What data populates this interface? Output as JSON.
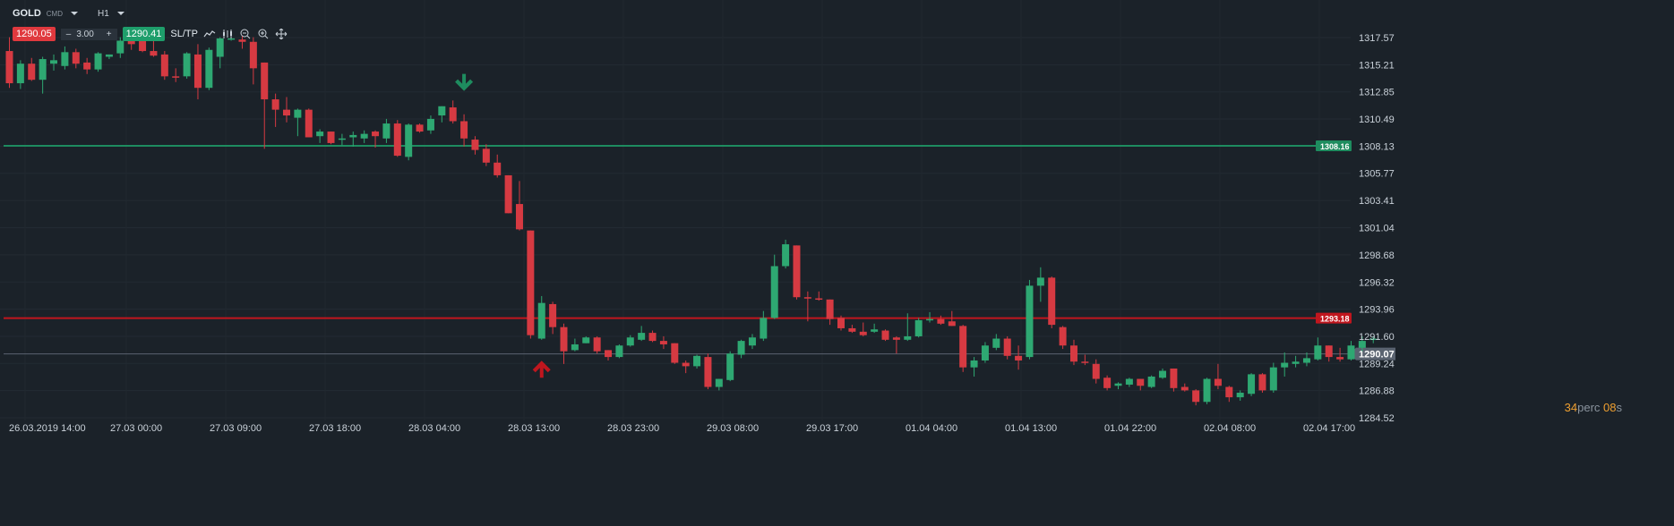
{
  "toolbar": {
    "symbol": "GOLD",
    "symbol_type": "CMD",
    "timeframe": "H1",
    "sell_price": "1290.05",
    "volume_minus": "–",
    "volume": "3.00",
    "volume_plus": "+",
    "buy_price": "1290.41",
    "sltp_label": "SL/TP"
  },
  "timer": {
    "prefix": "34",
    "mid": "perc ",
    "suffix_num": "08",
    "suffix": "s"
  },
  "colors": {
    "background": "#1b2229",
    "up": "#2ea872",
    "down": "#d63a42",
    "tp_line": "#1e8c5f",
    "sl_line": "#c0161e"
  },
  "chart_data": {
    "type": "candlestick",
    "y_ticks": [
      "1317.57",
      "1315.21",
      "1312.85",
      "1310.49",
      "1308.13",
      "1305.77",
      "1303.41",
      "1301.04",
      "1298.68",
      "1296.32",
      "1293.96",
      "1291.60",
      "1289.24",
      "1286.88",
      "1284.52"
    ],
    "ylim": [
      1284.52,
      1317.57
    ],
    "x_labels": [
      "26.03.2019 14:00",
      "27.03 00:00",
      "27.03 09:00",
      "27.03 18:00",
      "28.03 04:00",
      "28.03 13:00",
      "28.03 23:00",
      "29.03 08:00",
      "29.03 17:00",
      "01.04 04:00",
      "01.04 13:00",
      "01.04 22:00",
      "02.04 08:00",
      "02.04 17:00"
    ],
    "hlines": [
      {
        "name": "take-profit",
        "value": 1308.16,
        "label": "1308.16",
        "color": "#1e8c5f"
      },
      {
        "name": "stop-loss",
        "value": 1293.18,
        "label": "1293.18",
        "color": "#c0161e"
      },
      {
        "name": "current-price",
        "value": 1290.07,
        "label": "1290.07",
        "color": "#5a6370"
      }
    ],
    "markers": [
      {
        "type": "sell-arrow",
        "index": 41,
        "value": 1312.7
      },
      {
        "type": "buy-arrow",
        "index": 48,
        "value": 1289.4
      }
    ],
    "candles": [
      {
        "o": 1316.4,
        "h": 1317.6,
        "l": 1313.2,
        "c": 1313.6
      },
      {
        "o": 1313.6,
        "h": 1315.6,
        "l": 1313.1,
        "c": 1315.3
      },
      {
        "o": 1315.3,
        "h": 1315.8,
        "l": 1313.8,
        "c": 1313.9
      },
      {
        "o": 1313.9,
        "h": 1315.9,
        "l": 1312.7,
        "c": 1315.7
      },
      {
        "o": 1315.3,
        "h": 1316.1,
        "l": 1314.7,
        "c": 1315.6
      },
      {
        "o": 1315.1,
        "h": 1316.8,
        "l": 1314.8,
        "c": 1316.3
      },
      {
        "o": 1316.3,
        "h": 1316.6,
        "l": 1314.9,
        "c": 1315.3
      },
      {
        "o": 1315.4,
        "h": 1315.8,
        "l": 1314.4,
        "c": 1314.8
      },
      {
        "o": 1314.8,
        "h": 1316.3,
        "l": 1314.6,
        "c": 1316.2
      },
      {
        "o": 1315.9,
        "h": 1316.1,
        "l": 1315.7,
        "c": 1316.1
      },
      {
        "o": 1316.2,
        "h": 1317.6,
        "l": 1315.8,
        "c": 1317.3
      },
      {
        "o": 1317.3,
        "h": 1317.6,
        "l": 1316.5,
        "c": 1317.0
      },
      {
        "o": 1317.4,
        "h": 1317.7,
        "l": 1316.3,
        "c": 1316.4
      },
      {
        "o": 1316.4,
        "h": 1317.6,
        "l": 1315.9,
        "c": 1316.0
      },
      {
        "o": 1316.1,
        "h": 1316.4,
        "l": 1313.9,
        "c": 1314.2
      },
      {
        "o": 1314.2,
        "h": 1314.9,
        "l": 1313.7,
        "c": 1314.1
      },
      {
        "o": 1314.2,
        "h": 1316.3,
        "l": 1314.0,
        "c": 1316.2
      },
      {
        "o": 1316.1,
        "h": 1317.0,
        "l": 1312.2,
        "c": 1313.2
      },
      {
        "o": 1313.2,
        "h": 1316.7,
        "l": 1313.0,
        "c": 1316.5
      },
      {
        "o": 1315.9,
        "h": 1317.6,
        "l": 1314.9,
        "c": 1317.5
      },
      {
        "o": 1317.4,
        "h": 1317.7,
        "l": 1317.3,
        "c": 1317.5
      },
      {
        "o": 1317.4,
        "h": 1317.7,
        "l": 1316.6,
        "c": 1317.2
      },
      {
        "o": 1317.2,
        "h": 1317.6,
        "l": 1313.5,
        "c": 1314.9
      },
      {
        "o": 1315.4,
        "h": 1315.4,
        "l": 1307.9,
        "c": 1312.2
      },
      {
        "o": 1312.2,
        "h": 1312.7,
        "l": 1309.8,
        "c": 1311.3
      },
      {
        "o": 1311.3,
        "h": 1312.4,
        "l": 1310.2,
        "c": 1310.8
      },
      {
        "o": 1310.6,
        "h": 1311.4,
        "l": 1309.0,
        "c": 1311.3
      },
      {
        "o": 1311.3,
        "h": 1311.4,
        "l": 1308.9,
        "c": 1308.9
      },
      {
        "o": 1309.0,
        "h": 1309.6,
        "l": 1308.4,
        "c": 1309.4
      },
      {
        "o": 1309.4,
        "h": 1309.4,
        "l": 1308.3,
        "c": 1308.4
      },
      {
        "o": 1308.8,
        "h": 1309.2,
        "l": 1308.2,
        "c": 1308.8
      },
      {
        "o": 1308.9,
        "h": 1309.4,
        "l": 1308.1,
        "c": 1309.1
      },
      {
        "o": 1308.8,
        "h": 1309.5,
        "l": 1308.4,
        "c": 1309.2
      },
      {
        "o": 1309.4,
        "h": 1309.5,
        "l": 1308.0,
        "c": 1309.0
      },
      {
        "o": 1308.8,
        "h": 1310.5,
        "l": 1308.4,
        "c": 1310.1
      },
      {
        "o": 1310.1,
        "h": 1310.4,
        "l": 1307.2,
        "c": 1307.3
      },
      {
        "o": 1307.2,
        "h": 1310.1,
        "l": 1306.9,
        "c": 1310.0
      },
      {
        "o": 1310.0,
        "h": 1310.1,
        "l": 1309.3,
        "c": 1309.4
      },
      {
        "o": 1309.5,
        "h": 1310.8,
        "l": 1309.2,
        "c": 1310.5
      },
      {
        "o": 1310.8,
        "h": 1311.6,
        "l": 1310.2,
        "c": 1311.6
      },
      {
        "o": 1311.5,
        "h": 1312.1,
        "l": 1310.1,
        "c": 1310.3
      },
      {
        "o": 1310.3,
        "h": 1310.9,
        "l": 1308.1,
        "c": 1308.8
      },
      {
        "o": 1308.7,
        "h": 1309.0,
        "l": 1307.4,
        "c": 1307.8
      },
      {
        "o": 1307.9,
        "h": 1308.3,
        "l": 1306.4,
        "c": 1306.7
      },
      {
        "o": 1306.7,
        "h": 1307.4,
        "l": 1305.4,
        "c": 1305.6
      },
      {
        "o": 1305.6,
        "h": 1305.6,
        "l": 1302.3,
        "c": 1302.3
      },
      {
        "o": 1303.1,
        "h": 1305.1,
        "l": 1300.8,
        "c": 1300.9
      },
      {
        "o": 1300.8,
        "h": 1300.8,
        "l": 1291.4,
        "c": 1291.7
      },
      {
        "o": 1291.4,
        "h": 1295.1,
        "l": 1291.3,
        "c": 1294.5
      },
      {
        "o": 1294.4,
        "h": 1294.6,
        "l": 1291.8,
        "c": 1292.4
      },
      {
        "o": 1292.4,
        "h": 1292.7,
        "l": 1289.2,
        "c": 1290.3
      },
      {
        "o": 1290.4,
        "h": 1291.4,
        "l": 1290.3,
        "c": 1290.9
      },
      {
        "o": 1291.0,
        "h": 1291.6,
        "l": 1291.0,
        "c": 1291.5
      },
      {
        "o": 1291.5,
        "h": 1291.6,
        "l": 1290.1,
        "c": 1290.3
      },
      {
        "o": 1290.4,
        "h": 1290.4,
        "l": 1289.5,
        "c": 1289.8
      },
      {
        "o": 1289.8,
        "h": 1290.9,
        "l": 1289.7,
        "c": 1290.8
      },
      {
        "o": 1290.8,
        "h": 1291.7,
        "l": 1290.7,
        "c": 1291.5
      },
      {
        "o": 1291.3,
        "h": 1292.5,
        "l": 1291.2,
        "c": 1291.9
      },
      {
        "o": 1291.9,
        "h": 1292.1,
        "l": 1291.1,
        "c": 1291.2
      },
      {
        "o": 1291.2,
        "h": 1291.6,
        "l": 1290.5,
        "c": 1290.9
      },
      {
        "o": 1291.0,
        "h": 1291.0,
        "l": 1289.2,
        "c": 1289.3
      },
      {
        "o": 1289.3,
        "h": 1289.5,
        "l": 1288.4,
        "c": 1289.0
      },
      {
        "o": 1289.0,
        "h": 1290.0,
        "l": 1288.8,
        "c": 1289.9
      },
      {
        "o": 1289.8,
        "h": 1290.1,
        "l": 1287.0,
        "c": 1287.2
      },
      {
        "o": 1287.2,
        "h": 1287.9,
        "l": 1286.9,
        "c": 1287.9
      },
      {
        "o": 1287.8,
        "h": 1290.3,
        "l": 1287.7,
        "c": 1290.1
      },
      {
        "o": 1290.0,
        "h": 1291.3,
        "l": 1289.7,
        "c": 1291.2
      },
      {
        "o": 1290.8,
        "h": 1291.8,
        "l": 1290.5,
        "c": 1291.5
      },
      {
        "o": 1291.4,
        "h": 1293.8,
        "l": 1291.2,
        "c": 1293.2
      },
      {
        "o": 1293.2,
        "h": 1298.7,
        "l": 1293.1,
        "c": 1297.7
      },
      {
        "o": 1297.7,
        "h": 1300.0,
        "l": 1297.5,
        "c": 1299.6
      },
      {
        "o": 1299.5,
        "h": 1299.5,
        "l": 1294.8,
        "c": 1295.0
      },
      {
        "o": 1295.0,
        "h": 1295.5,
        "l": 1292.9,
        "c": 1294.9
      },
      {
        "o": 1294.9,
        "h": 1295.5,
        "l": 1294.7,
        "c": 1294.8
      },
      {
        "o": 1294.8,
        "h": 1294.8,
        "l": 1292.6,
        "c": 1293.1
      },
      {
        "o": 1293.2,
        "h": 1293.4,
        "l": 1292.1,
        "c": 1292.3
      },
      {
        "o": 1292.3,
        "h": 1292.6,
        "l": 1291.9,
        "c": 1292.0
      },
      {
        "o": 1292.0,
        "h": 1292.8,
        "l": 1291.6,
        "c": 1291.7
      },
      {
        "o": 1292.0,
        "h": 1292.7,
        "l": 1291.9,
        "c": 1292.2
      },
      {
        "o": 1292.1,
        "h": 1292.2,
        "l": 1291.2,
        "c": 1291.3
      },
      {
        "o": 1291.5,
        "h": 1291.6,
        "l": 1290.1,
        "c": 1291.3
      },
      {
        "o": 1291.3,
        "h": 1293.6,
        "l": 1291.2,
        "c": 1291.6
      },
      {
        "o": 1291.6,
        "h": 1293.2,
        "l": 1291.5,
        "c": 1293.0
      },
      {
        "o": 1293.0,
        "h": 1293.7,
        "l": 1292.8,
        "c": 1293.1
      },
      {
        "o": 1293.1,
        "h": 1293.4,
        "l": 1292.6,
        "c": 1292.7
      },
      {
        "o": 1292.9,
        "h": 1293.8,
        "l": 1292.5,
        "c": 1292.5
      },
      {
        "o": 1292.5,
        "h": 1292.6,
        "l": 1288.5,
        "c": 1288.9
      },
      {
        "o": 1288.9,
        "h": 1289.8,
        "l": 1288.1,
        "c": 1289.5
      },
      {
        "o": 1289.5,
        "h": 1291.1,
        "l": 1289.3,
        "c": 1290.8
      },
      {
        "o": 1290.6,
        "h": 1291.8,
        "l": 1290.4,
        "c": 1291.4
      },
      {
        "o": 1291.4,
        "h": 1291.6,
        "l": 1289.6,
        "c": 1289.9
      },
      {
        "o": 1289.9,
        "h": 1290.8,
        "l": 1288.7,
        "c": 1289.5
      },
      {
        "o": 1289.8,
        "h": 1296.5,
        "l": 1289.6,
        "c": 1296.0
      },
      {
        "o": 1296.0,
        "h": 1297.6,
        "l": 1294.6,
        "c": 1296.7
      },
      {
        "o": 1296.7,
        "h": 1296.8,
        "l": 1292.3,
        "c": 1292.6
      },
      {
        "o": 1292.4,
        "h": 1292.5,
        "l": 1290.5,
        "c": 1290.8
      },
      {
        "o": 1290.8,
        "h": 1291.3,
        "l": 1289.1,
        "c": 1289.4
      },
      {
        "o": 1289.4,
        "h": 1290.0,
        "l": 1289.1,
        "c": 1289.3
      },
      {
        "o": 1289.2,
        "h": 1289.6,
        "l": 1287.5,
        "c": 1287.9
      },
      {
        "o": 1288.0,
        "h": 1288.2,
        "l": 1286.9,
        "c": 1287.1
      },
      {
        "o": 1287.3,
        "h": 1287.6,
        "l": 1287.0,
        "c": 1287.5
      },
      {
        "o": 1287.4,
        "h": 1288.0,
        "l": 1287.2,
        "c": 1287.9
      },
      {
        "o": 1287.9,
        "h": 1287.9,
        "l": 1286.9,
        "c": 1287.3
      },
      {
        "o": 1287.2,
        "h": 1288.2,
        "l": 1287.1,
        "c": 1288.1
      },
      {
        "o": 1288.0,
        "h": 1288.8,
        "l": 1287.9,
        "c": 1288.6
      },
      {
        "o": 1288.8,
        "h": 1288.8,
        "l": 1286.8,
        "c": 1287.1
      },
      {
        "o": 1287.2,
        "h": 1287.5,
        "l": 1286.8,
        "c": 1286.9
      },
      {
        "o": 1286.9,
        "h": 1287.0,
        "l": 1285.6,
        "c": 1285.9
      },
      {
        "o": 1285.9,
        "h": 1288.0,
        "l": 1285.7,
        "c": 1287.9
      },
      {
        "o": 1287.9,
        "h": 1289.2,
        "l": 1287.0,
        "c": 1287.3
      },
      {
        "o": 1287.2,
        "h": 1287.3,
        "l": 1285.9,
        "c": 1286.3
      },
      {
        "o": 1286.3,
        "h": 1286.9,
        "l": 1286.0,
        "c": 1286.7
      },
      {
        "o": 1286.6,
        "h": 1288.4,
        "l": 1286.4,
        "c": 1288.3
      },
      {
        "o": 1288.3,
        "h": 1288.4,
        "l": 1286.7,
        "c": 1286.9
      },
      {
        "o": 1286.9,
        "h": 1289.3,
        "l": 1286.7,
        "c": 1288.9
      },
      {
        "o": 1288.9,
        "h": 1290.2,
        "l": 1288.1,
        "c": 1289.3
      },
      {
        "o": 1289.2,
        "h": 1289.9,
        "l": 1288.9,
        "c": 1289.4
      },
      {
        "o": 1289.3,
        "h": 1290.2,
        "l": 1289.0,
        "c": 1289.7
      },
      {
        "o": 1289.6,
        "h": 1291.5,
        "l": 1289.5,
        "c": 1290.8
      },
      {
        "o": 1290.8,
        "h": 1290.8,
        "l": 1289.4,
        "c": 1289.8
      },
      {
        "o": 1289.8,
        "h": 1290.6,
        "l": 1289.4,
        "c": 1289.6
      },
      {
        "o": 1289.6,
        "h": 1291.2,
        "l": 1289.5,
        "c": 1290.8
      },
      {
        "o": 1290.6,
        "h": 1291.6,
        "l": 1290.3,
        "c": 1291.2
      },
      {
        "o": 1291.3,
        "h": 1291.6,
        "l": 1291.0,
        "c": 1291.4
      }
    ]
  }
}
